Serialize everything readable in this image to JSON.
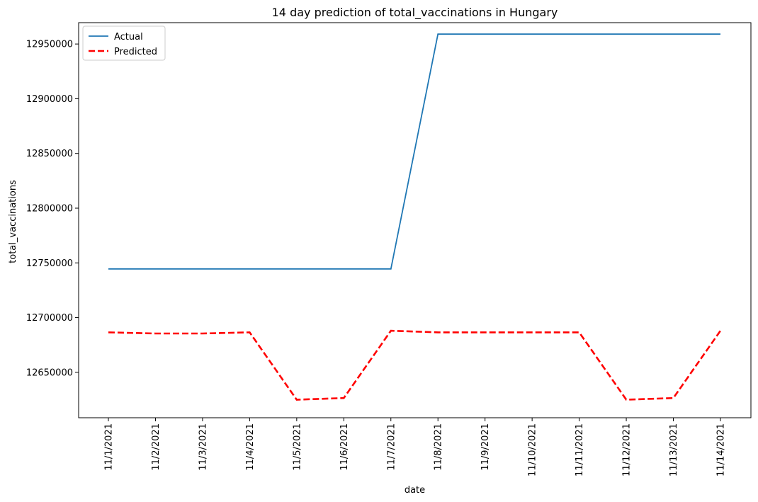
{
  "chart_data": {
    "type": "line",
    "title": "14 day prediction of total_vaccinations in Hungary",
    "xlabel": "date",
    "ylabel": "total_vaccinations",
    "categories": [
      "11/1/2021",
      "11/2/2021",
      "11/3/2021",
      "11/4/2021",
      "11/5/2021",
      "11/6/2021",
      "11/7/2021",
      "11/8/2021",
      "11/9/2021",
      "11/10/2021",
      "11/11/2021",
      "11/12/2021",
      "11/13/2021",
      "11/14/2021"
    ],
    "yticks": [
      12650000,
      12700000,
      12750000,
      12800000,
      12850000,
      12900000,
      12950000
    ],
    "ylim": [
      12608500,
      12969500
    ],
    "grid": false,
    "legend_position": "top-left",
    "series": [
      {
        "name": "Actual",
        "color": "#1f77b4",
        "style": "solid",
        "values": [
          12744500,
          12744500,
          12744500,
          12744500,
          12744500,
          12744500,
          12744500,
          12959000,
          12959000,
          12959000,
          12959000,
          12959000,
          12959000,
          12959000
        ]
      },
      {
        "name": "Predicted",
        "color": "#ff0000",
        "style": "dashed",
        "values": [
          12686500,
          12685500,
          12685500,
          12686500,
          12625000,
          12626500,
          12688000,
          12686500,
          12686500,
          12686500,
          12686500,
          12625000,
          12626500,
          12688000
        ]
      }
    ]
  }
}
